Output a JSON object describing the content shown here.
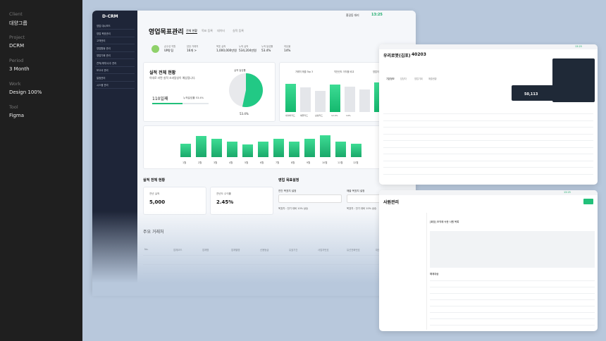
{
  "meta": [
    {
      "label": "Client",
      "value": "대양그룹"
    },
    {
      "label": "Project",
      "value": "DCRM"
    },
    {
      "label": "Period",
      "value": "3 Month"
    },
    {
      "label": "Work",
      "value": "Design 100%"
    },
    {
      "label": "Tool",
      "value": "Figma"
    }
  ],
  "main": {
    "brand": "D-CRM",
    "menu": [
      "영업 대시보드",
      "영업 목표관리",
      "고객관리",
      "영업활동 관리",
      "영업기회 관리",
      "견적/계약/수주 관리",
      "보고서 관리",
      "일정관리",
      "시스템 관리"
    ],
    "user": "홍길동 대리",
    "time": "13:25",
    "title": "영업목표관리",
    "tabs": [
      "전체 현황",
      "목표 등록",
      "데이터",
      "실적 등록"
    ],
    "summary": [
      {
        "label": "손우성 직원",
        "value": "UMJ 팀"
      },
      {
        "label": "담당 거래처",
        "value": "16개 >"
      },
      {
        "label": "목표 실적",
        "value": "1,000,000만원"
      },
      {
        "label": "누적 실적",
        "value": "534,204만원"
      },
      {
        "label": "누적 달성률",
        "value": "53.4%"
      },
      {
        "label": "여유율",
        "value": "14%"
      }
    ],
    "card": {
      "title": "실적 전체 현황",
      "subtitle": "이대로 라면 실적 조과달성이 예상됩니다.",
      "days": "110일째",
      "progress": "누적달성률 53.4%",
      "pie_title": "실적 달성률",
      "pie": {
        "value": 53.4,
        "label": "53.4%"
      }
    },
    "mini": {
      "titles": [
        "거래처 매출 Top 3",
        "직전년도 이익율 비교",
        "영업이익률"
      ],
      "categories": [
        "네이버카드",
        "애플카드",
        "삼성카드",
        "",
        "",
        "",
        "",
        ""
      ],
      "values": [
        80,
        70,
        60,
        78,
        72,
        64,
        84,
        70
      ],
      "value_labels": [
        null,
        null,
        null,
        "12.4%",
        "14%",
        null,
        null,
        null
      ]
    },
    "month_chart": {
      "categories": [
        "1월",
        "2월",
        "3월",
        "4월",
        "5월",
        "6월",
        "7월",
        "8월",
        "9월",
        "10월",
        "11월",
        "12월"
      ],
      "values": [
        60,
        95,
        82,
        70,
        55,
        70,
        82,
        70,
        82,
        98,
        70,
        60
      ]
    },
    "section": "실적 전체 현황",
    "stats": [
      {
        "label": "전년 실적",
        "value": "5,000"
      },
      {
        "label": "전년도 수익률",
        "value": "2.45%"
      }
    ],
    "goal": {
      "title": "영업 목표설정",
      "fields": [
        {
          "label": "연간 목표치 설정",
          "hint": "목표치 : 전기 대비 10% 상승"
        },
        {
          "label": "매출 목표치 설정",
          "hint": "목표치 : 전기 대비 10% 상승"
        }
      ]
    },
    "clients": {
      "title": "주요 거래처",
      "headers": [
        "No.",
        "업체코드",
        "업체명",
        "업체별명",
        "신용등급",
        "유효기간",
        "사업자번호",
        "유선전화번호",
        "대표이름"
      ]
    }
  },
  "detail": {
    "title": "우리로봇(김포)",
    "code": "40203",
    "time": "13:25",
    "tabs": [
      "기본정보",
      "담당자",
      "영업기회",
      "매출현황"
    ],
    "amount": "50,113"
  },
  "staff": {
    "title": "사원관리",
    "time": "13:25",
    "section1": "[회장] 조직에 속한 사원 목록",
    "section2": "해제대상"
  }
}
